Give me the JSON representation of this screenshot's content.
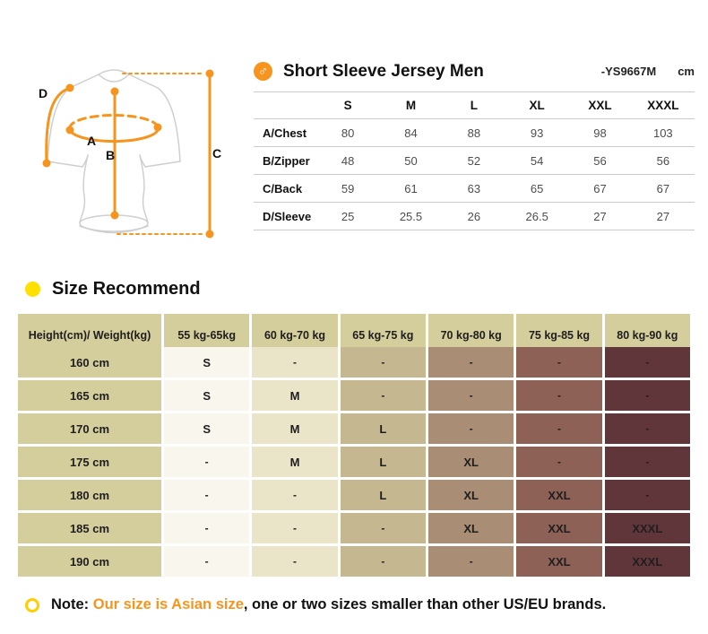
{
  "colors": {
    "accent_orange": "#f7941d",
    "bullet_yellow": "#ffe000",
    "ring_yellow": "#ffce00",
    "table_line": "#cbcbcb"
  },
  "icons": {
    "male_symbol": "♂"
  },
  "diagram": {
    "labels": {
      "a": "A",
      "b": "B",
      "c": "C",
      "d": "D"
    }
  },
  "size_chart": {
    "title": "Short Sleeve Jersey Men",
    "model": "-YS9667M",
    "unit": "cm",
    "columns": [
      "S",
      "M",
      "L",
      "XL",
      "XXL",
      "XXXL"
    ],
    "rows": [
      {
        "label": "A/Chest",
        "values": [
          "80",
          "84",
          "88",
          "93",
          "98",
          "103"
        ]
      },
      {
        "label": "B/Zipper",
        "values": [
          "48",
          "50",
          "52",
          "54",
          "56",
          "56"
        ]
      },
      {
        "label": "C/Back",
        "values": [
          "59",
          "61",
          "63",
          "65",
          "67",
          "67"
        ]
      },
      {
        "label": "D/Sleeve",
        "values": [
          "25",
          "25.5",
          "26",
          "26.5",
          "27",
          "27"
        ]
      }
    ]
  },
  "recommend": {
    "title": "Size Recommend",
    "header": [
      "Height(cm)/ Weight(kg)",
      "55 kg-65kg",
      "60 kg-70 kg",
      "65 kg-75 kg",
      "70 kg-80 kg",
      "75 kg-85 kg",
      "80 kg-90 kg"
    ],
    "column_colors": [
      "#d4cd9c",
      "#f9f7ed",
      "#eae5c9",
      "#c5b890",
      "#a98d74",
      "#8d6156",
      "#61363b"
    ],
    "rows": [
      {
        "height": "160 cm",
        "values": [
          "S",
          "-",
          "-",
          "-",
          "-",
          "-"
        ]
      },
      {
        "height": "165 cm",
        "values": [
          "S",
          "M",
          "-",
          "-",
          "-",
          "-"
        ]
      },
      {
        "height": "170 cm",
        "values": [
          "S",
          "M",
          "L",
          "-",
          "-",
          "-"
        ]
      },
      {
        "height": "175 cm",
        "values": [
          "-",
          "M",
          "L",
          "XL",
          "-",
          "-"
        ]
      },
      {
        "height": "180 cm",
        "values": [
          "-",
          "-",
          "L",
          "XL",
          "XXL",
          "-"
        ]
      },
      {
        "height": "185 cm",
        "values": [
          "-",
          "-",
          "-",
          "XL",
          "XXL",
          "XXXL"
        ]
      },
      {
        "height": "190 cm",
        "values": [
          "-",
          "-",
          "-",
          "-",
          "XXL",
          "XXXL"
        ]
      }
    ]
  },
  "note": {
    "prefix": "Note: ",
    "highlight": "Our size is Asian size",
    "rest": ", one or two sizes smaller than other US/EU brands."
  }
}
